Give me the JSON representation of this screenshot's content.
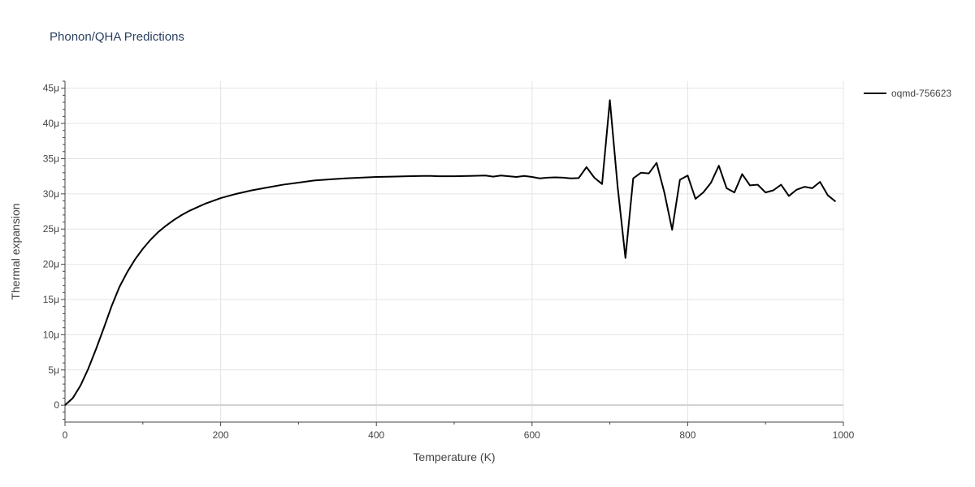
{
  "chart_data": {
    "type": "line",
    "title": "Phonon/QHA Predictions",
    "xlabel": "Temperature (K)",
    "ylabel": "Thermal expansion",
    "xlim": [
      0,
      1000
    ],
    "ylim": [
      -2.4e-06,
      4.6e-05
    ],
    "grid": true,
    "legend_position": "top-right",
    "x_ticks": [
      0,
      200,
      400,
      600,
      800,
      1000
    ],
    "x_tick_labels": [
      "0",
      "200",
      "400",
      "600",
      "800",
      "1000"
    ],
    "y_ticks": [
      0,
      5e-06,
      1e-05,
      1.5e-05,
      2e-05,
      2.5e-05,
      3e-05,
      3.5e-05,
      4e-05,
      4.5e-05
    ],
    "y_tick_labels": [
      "0",
      "5μ",
      "10μ",
      "15μ",
      "20μ",
      "25μ",
      "30μ",
      "35μ",
      "40μ",
      "45μ"
    ],
    "series": [
      {
        "name": "oqmd-756623",
        "color": "#000000",
        "x": [
          0,
          10,
          20,
          30,
          40,
          50,
          60,
          70,
          80,
          90,
          100,
          110,
          120,
          130,
          140,
          150,
          160,
          170,
          180,
          190,
          200,
          220,
          240,
          260,
          280,
          300,
          320,
          340,
          360,
          380,
          400,
          420,
          440,
          460,
          470,
          480,
          500,
          520,
          540,
          550,
          560,
          570,
          580,
          590,
          600,
          610,
          620,
          630,
          640,
          650,
          660,
          670,
          680,
          690,
          700,
          710,
          720,
          730,
          740,
          750,
          760,
          770,
          780,
          790,
          800,
          810,
          820,
          830,
          840,
          850,
          860,
          870,
          880,
          890,
          900,
          910,
          920,
          930,
          940,
          950,
          960,
          970,
          980,
          990
        ],
        "values": [
          0,
          1e-06,
          2.8e-06,
          5.2e-06,
          8e-06,
          1.1e-05,
          1.41e-05,
          1.68e-05,
          1.89e-05,
          2.07e-05,
          2.22e-05,
          2.35e-05,
          2.46e-05,
          2.55e-05,
          2.63e-05,
          2.7e-05,
          2.76e-05,
          2.81e-05,
          2.86e-05,
          2.9e-05,
          2.94e-05,
          3e-05,
          3.05e-05,
          3.09e-05,
          3.13e-05,
          3.16e-05,
          3.19e-05,
          3.205e-05,
          3.22e-05,
          3.23e-05,
          3.24e-05,
          3.245e-05,
          3.25e-05,
          3.255e-05,
          3.255e-05,
          3.25e-05,
          3.25e-05,
          3.255e-05,
          3.26e-05,
          3.245e-05,
          3.26e-05,
          3.25e-05,
          3.24e-05,
          3.255e-05,
          3.24e-05,
          3.22e-05,
          3.23e-05,
          3.235e-05,
          3.23e-05,
          3.22e-05,
          3.225e-05,
          3.38e-05,
          3.23e-05,
          3.14e-05,
          4.33e-05,
          3.1e-05,
          2.09e-05,
          3.22e-05,
          3.3e-05,
          3.29e-05,
          3.44e-05,
          3.02e-05,
          2.49e-05,
          3.2e-05,
          3.26e-05,
          2.93e-05,
          3.02e-05,
          3.16e-05,
          3.4e-05,
          3.08e-05,
          3.02e-05,
          3.28e-05,
          3.12e-05,
          3.13e-05,
          3.02e-05,
          3.05e-05,
          3.13e-05,
          2.97e-05,
          3.06e-05,
          3.1e-05,
          3.08e-05,
          3.17e-05,
          2.98e-05,
          2.89e-05
        ]
      }
    ]
  }
}
